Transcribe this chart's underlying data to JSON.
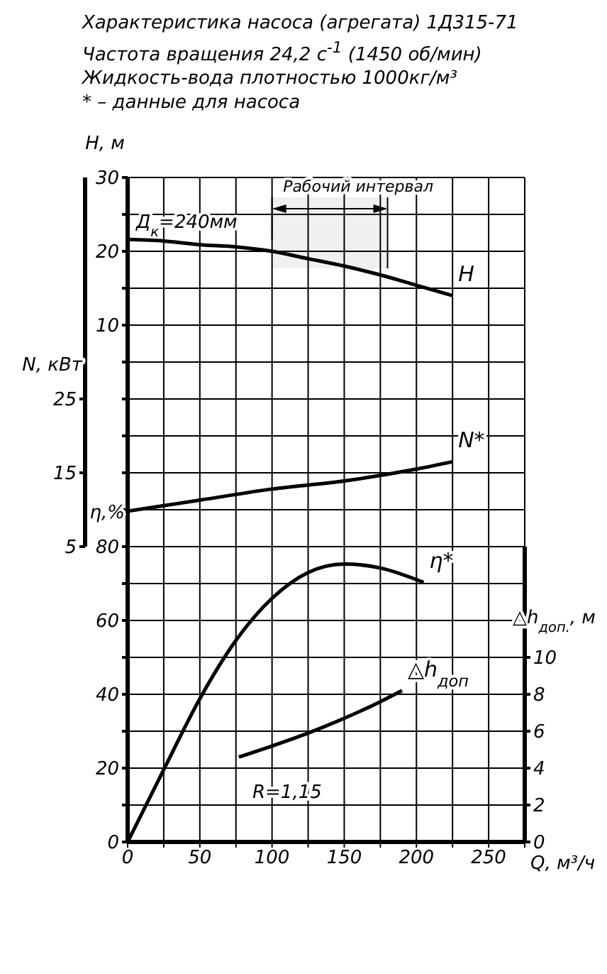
{
  "chart_data": [
    {
      "type": "line",
      "title": "Характеристика насоса (агрегата) 1Д315-71",
      "subtitle": "Частота вращения 24,2 с$^{-1}$ (1450 об/мин)",
      "annotations": [
        "Жидкость-вода плотностью 1000кг/м³",
        "* – данные для насоса",
        "Д$_{к}$=240мм"
      ],
      "ylabel": "H, м",
      "y2label": "N, кВт",
      "tick_labels": "y",
      "xlim": [
        0,
        275
      ],
      "xticks": [
        0,
        25,
        50,
        75,
        100,
        125,
        150,
        175,
        200,
        225,
        250,
        275
      ],
      "ylim": [
        -20,
        30
      ],
      "yticks": [
        {
          "value": -20,
          "label": null
        },
        {
          "value": -15,
          "label": null
        },
        {
          "value": -10,
          "label": null
        },
        {
          "value": -5,
          "label": null
        },
        {
          "value": 0,
          "label": null
        },
        {
          "value": 5,
          "label": null
        },
        10,
        {
          "value": 15,
          "label": null
        },
        20,
        {
          "value": 25,
          "label": null
        },
        30
      ],
      "y2lim": [
        5,
        55
      ],
      "y2ticks": [
        5,
        15,
        25
      ],
      "grid": true,
      "marker": "none",
      "bands": [
        {
          "axis": "x",
          "from": 100,
          "to": 180,
          "label": "Рабочий интервал"
        }
      ],
      "series": [
        {
          "name": "H",
          "color": "#000000",
          "x": [
            0,
            25,
            50,
            75,
            100,
            125,
            150,
            175,
            200,
            225
          ],
          "values": [
            21.6,
            21.4,
            20.9,
            20.6,
            20.0,
            19.0,
            18.0,
            16.8,
            15.4,
            14.0
          ]
        },
        {
          "name": "N*",
          "color": "#000000",
          "axis": "y2",
          "x": [
            0,
            50,
            100,
            150,
            200,
            225
          ],
          "values": [
            9.8,
            11.3,
            12.8,
            13.9,
            15.5,
            16.5
          ]
        }
      ]
    },
    {
      "type": "line",
      "annotations": [
        "R=1,15"
      ],
      "xlabel": "Q, м³/ч",
      "ylabel": "η,%",
      "y2label": "△h$_{доп.}$, м",
      "xlim": [
        0,
        275
      ],
      "xticks": [
        0,
        {
          "value": 25,
          "label": null
        },
        50,
        {
          "value": 75,
          "label": null
        },
        100,
        {
          "value": 125,
          "label": null
        },
        150,
        {
          "value": 175,
          "label": null
        },
        200,
        {
          "value": 225,
          "label": null
        },
        250,
        {
          "value": 275,
          "label": null
        }
      ],
      "ylim": [
        0,
        80
      ],
      "yticks": [
        0,
        {
          "value": 10,
          "label": null
        },
        20,
        {
          "value": 30,
          "label": null
        },
        40,
        {
          "value": 50,
          "label": null
        },
        60,
        {
          "value": 70,
          "label": null
        },
        80
      ],
      "y2lim": [
        0,
        16
      ],
      "y2ticks": [
        0,
        2,
        4,
        6,
        8,
        10
      ],
      "grid": true,
      "marker": "none",
      "series": [
        {
          "name": "η*",
          "color": "#000000",
          "x": [
            0,
            25,
            50,
            75,
            100,
            125,
            150,
            175,
            205
          ],
          "values": [
            0,
            19.6,
            38.8,
            54.6,
            66,
            73,
            75.3,
            74.2,
            70.3
          ]
        },
        {
          "name": "△h$_{доп}$",
          "color": "#000000",
          "axis": "y2",
          "x": [
            77,
            100,
            125,
            150,
            175,
            190
          ],
          "values": [
            4.6,
            5.2,
            5.9,
            6.7,
            7.6,
            8.2
          ]
        }
      ]
    }
  ]
}
